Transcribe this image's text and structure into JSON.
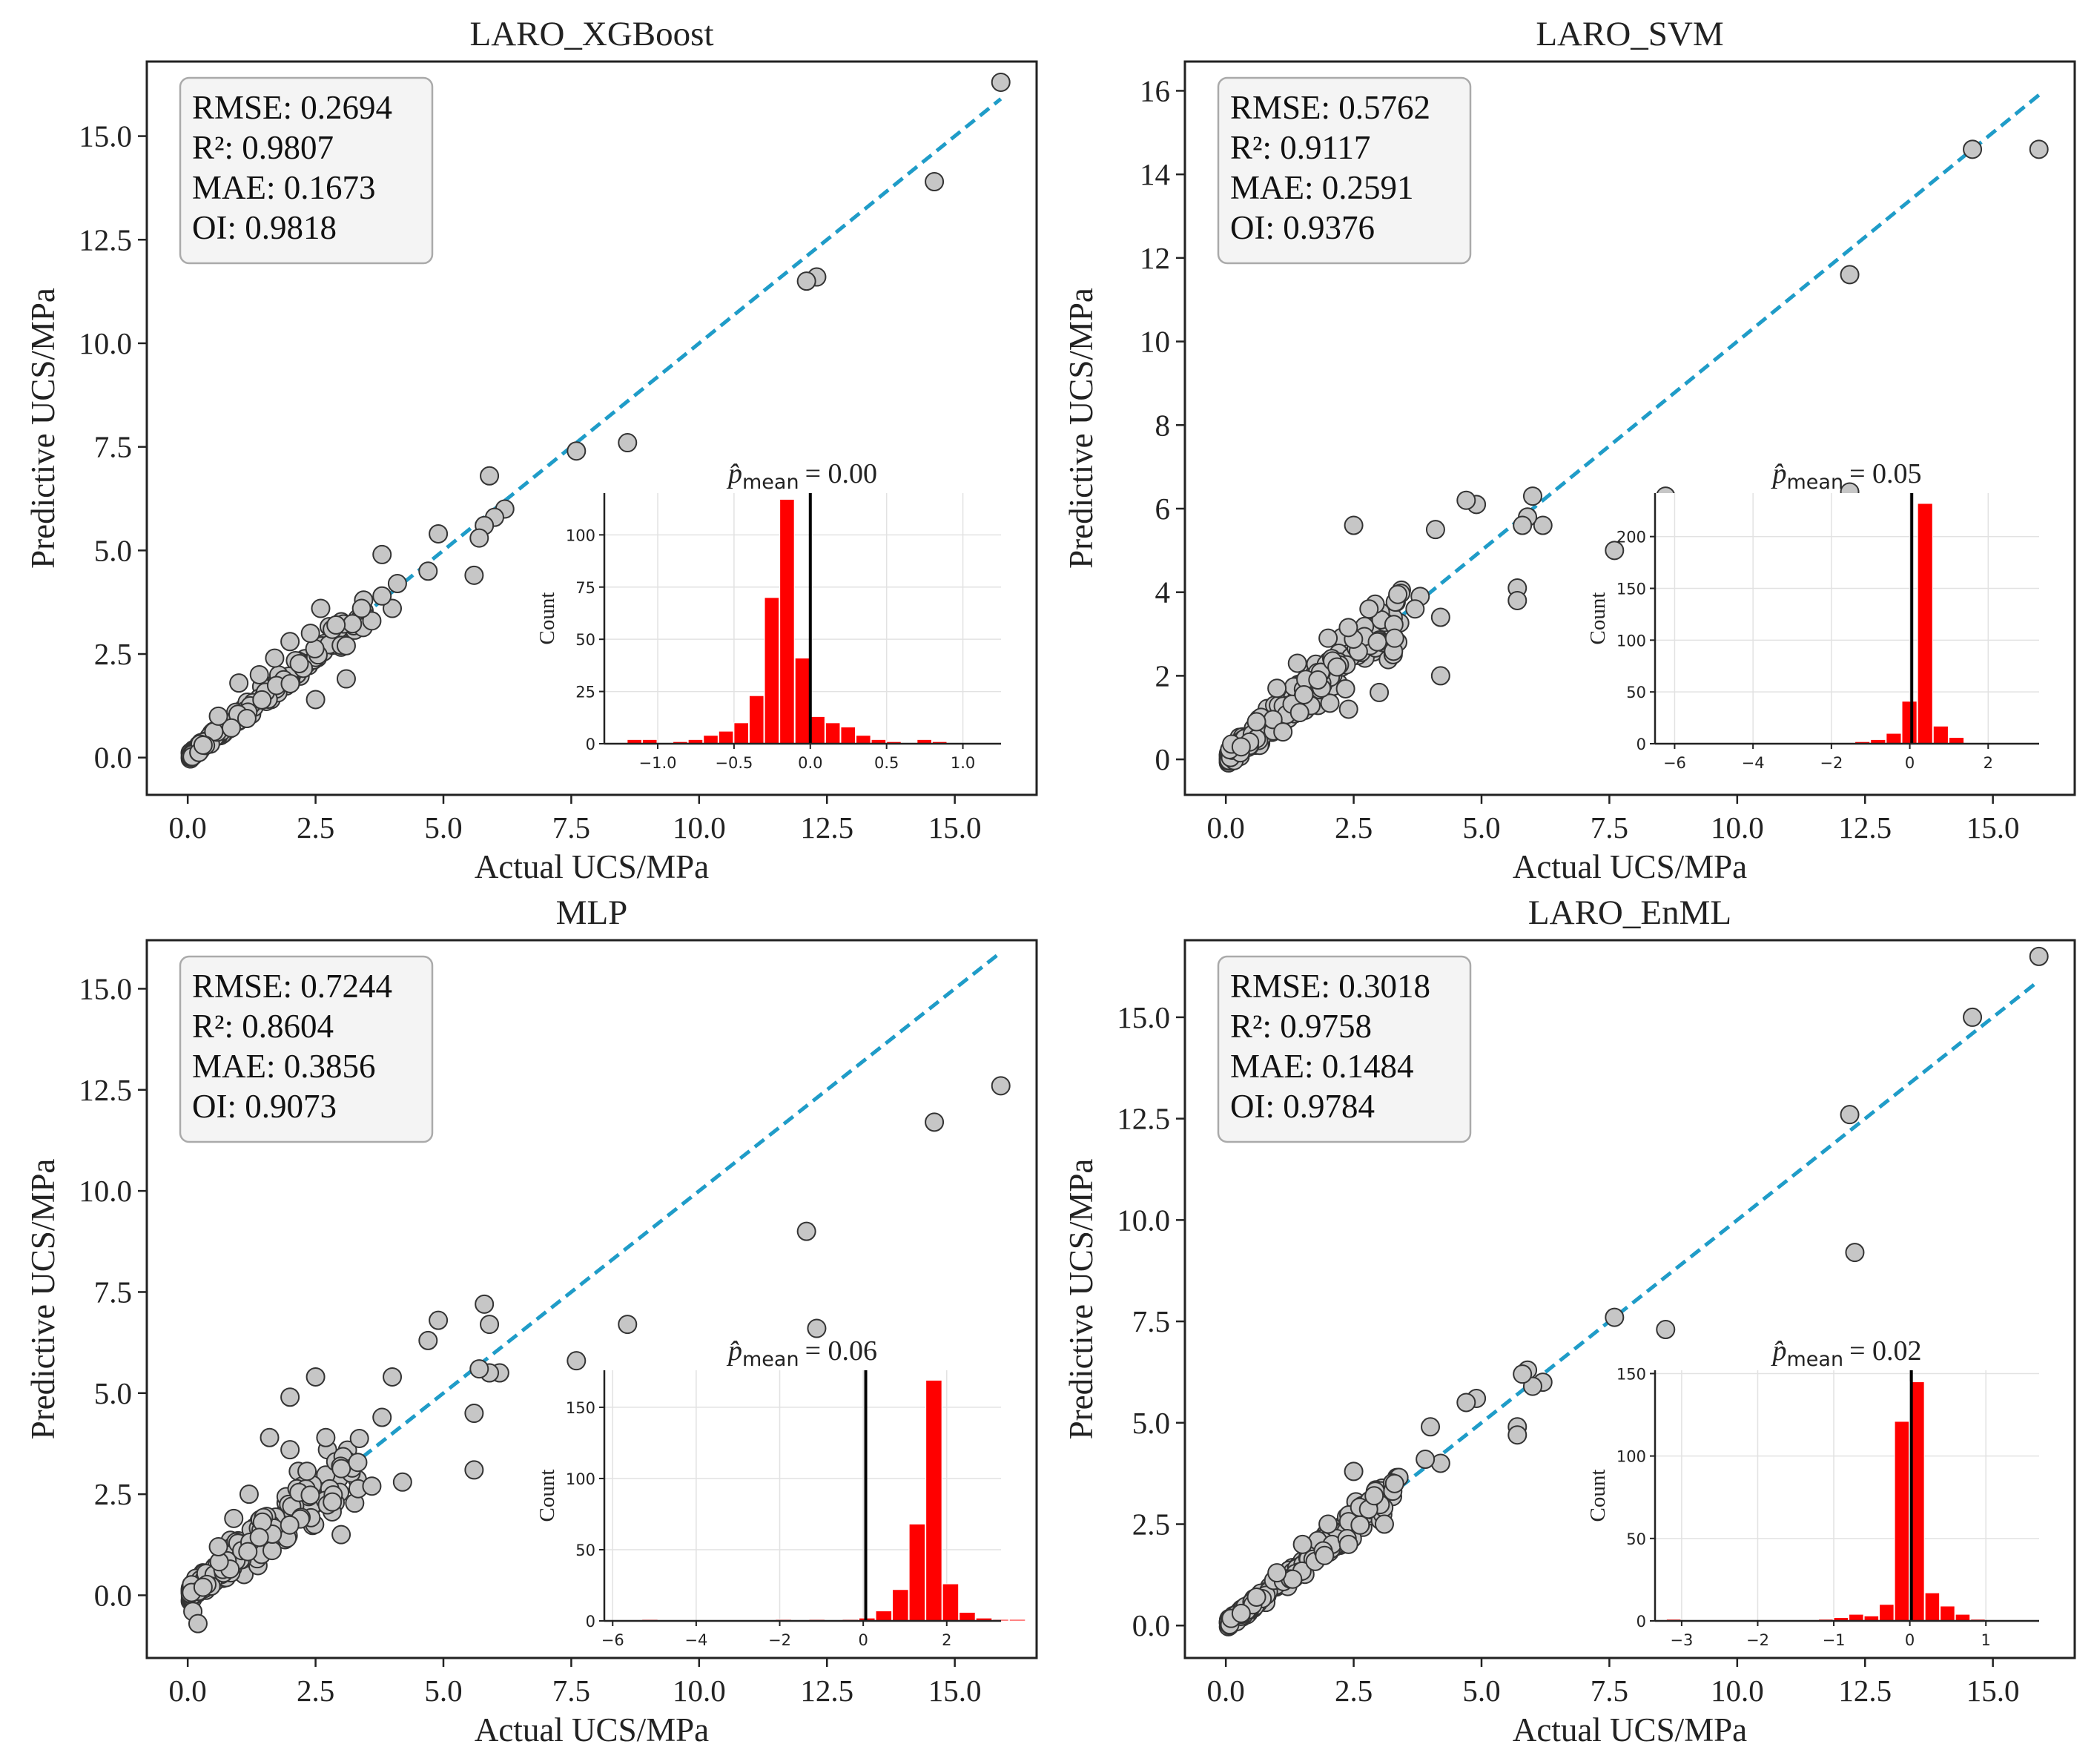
{
  "chart_data": [
    {
      "type": "scatter",
      "title": "LARO_XGBoost",
      "xlabel": "Actual UCS/MPa",
      "ylabel": "Predictive UCS/MPa",
      "xlim": [
        -0.8,
        16.6
      ],
      "ylim": [
        -0.9,
        16.8
      ],
      "xticks": [
        0,
        2.5,
        5,
        7.5,
        10,
        12.5,
        15
      ],
      "xtick_labels": [
        "0.0",
        "2.5",
        "5.0",
        "7.5",
        "10.0",
        "12.5",
        "15.0"
      ],
      "yticks": [
        0,
        2.5,
        5,
        7.5,
        10,
        12.5,
        15
      ],
      "ytick_labels": [
        "0.0",
        "2.5",
        "5.0",
        "7.5",
        "10.0",
        "12.5",
        "15.0"
      ],
      "spread": 0.22,
      "stats": [
        "RMSE: 0.2694",
        "R²: 0.9807",
        "MAE: 0.1673",
        "OI: 0.9818"
      ],
      "points": [
        [
          15.9,
          16.3
        ],
        [
          14.6,
          13.9
        ],
        [
          12.3,
          11.6
        ],
        [
          12.1,
          11.5
        ],
        [
          8.6,
          7.6
        ],
        [
          7.6,
          7.4
        ],
        [
          6.2,
          6.0
        ],
        [
          5.9,
          6.8
        ],
        [
          6.0,
          5.8
        ],
        [
          5.8,
          5.6
        ],
        [
          5.7,
          5.3
        ],
        [
          5.6,
          4.4
        ],
        [
          4.9,
          5.4
        ],
        [
          4.7,
          4.5
        ],
        [
          4.1,
          4.2
        ],
        [
          4.0,
          3.6
        ],
        [
          3.8,
          4.9
        ],
        [
          3.8,
          3.9
        ],
        [
          3.6,
          3.3
        ],
        [
          3.4,
          3.6
        ],
        [
          3.1,
          2.7
        ],
        [
          2.9,
          3.2
        ],
        [
          2.6,
          3.6
        ],
        [
          2.4,
          3.0
        ],
        [
          3.1,
          1.9
        ],
        [
          2.5,
          1.4
        ],
        [
          2.0,
          2.8
        ],
        [
          1.7,
          2.4
        ],
        [
          1.4,
          2.0
        ],
        [
          1.0,
          1.8
        ],
        [
          0.6,
          1.0
        ],
        [
          0.3,
          0.3
        ]
      ],
      "reference_line": [
        [
          0,
          0
        ],
        [
          15.9,
          15.9
        ]
      ],
      "inset": {
        "title_lhs": "p̂",
        "title_sub": "mean",
        "title_value": "= 0.00",
        "ylabel": "Count",
        "xlim": [
          -1.35,
          1.25
        ],
        "ylim": [
          0,
          120
        ],
        "xticks": [
          -1.0,
          -0.5,
          0.0,
          0.5,
          1.0
        ],
        "xtick_labels": [
          "−1.0",
          "−0.5",
          "0.0",
          "0.5",
          "1.0"
        ],
        "yticks": [
          0,
          25,
          50,
          75,
          100
        ],
        "ytick_labels": [
          "0",
          "25",
          "50",
          "75",
          "100"
        ],
        "bin_start": -1.2,
        "bin_width": 0.1,
        "counts": [
          2,
          2,
          0,
          1,
          2,
          4,
          6,
          10,
          23,
          70,
          117,
          41,
          13,
          10,
          8,
          4,
          2,
          1,
          0,
          2,
          1,
          0
        ],
        "mean": 0.0
      }
    },
    {
      "type": "scatter",
      "title": "LARO_SVM",
      "xlabel": "Actual UCS/MPa",
      "ylabel": "Predictive UCS/MPa",
      "xlim": [
        -0.8,
        16.6
      ],
      "ylim": [
        -0.85,
        16.7
      ],
      "xticks": [
        0,
        2.5,
        5,
        7.5,
        10,
        12.5,
        15
      ],
      "xtick_labels": [
        "0.0",
        "2.5",
        "5.0",
        "7.5",
        "10.0",
        "12.5",
        "15.0"
      ],
      "yticks": [
        0,
        2,
        4,
        6,
        8,
        10,
        12,
        14,
        16
      ],
      "ytick_labels": [
        "0",
        "2",
        "4",
        "6",
        "8",
        "10",
        "12",
        "14",
        "16"
      ],
      "spread": 0.45,
      "stats": [
        "RMSE: 0.5762",
        "R²: 0.9117",
        "MAE: 0.2591",
        "OI: 0.9376"
      ],
      "points": [
        [
          15.9,
          14.6
        ],
        [
          14.6,
          14.6
        ],
        [
          12.2,
          11.6
        ],
        [
          8.6,
          6.3
        ],
        [
          7.6,
          5.0
        ],
        [
          12.2,
          6.4
        ],
        [
          6.2,
          5.6
        ],
        [
          6.0,
          6.3
        ],
        [
          5.9,
          5.8
        ],
        [
          5.8,
          5.6
        ],
        [
          5.7,
          4.1
        ],
        [
          5.7,
          3.8
        ],
        [
          4.9,
          6.1
        ],
        [
          4.7,
          6.2
        ],
        [
          4.1,
          5.5
        ],
        [
          4.2,
          3.4
        ],
        [
          4.2,
          2.0
        ],
        [
          3.8,
          3.9
        ],
        [
          3.7,
          3.6
        ],
        [
          3.3,
          2.9
        ],
        [
          3.0,
          1.6
        ],
        [
          2.5,
          5.6
        ],
        [
          2.8,
          3.6
        ],
        [
          2.4,
          1.2
        ],
        [
          2.0,
          2.9
        ],
        [
          1.8,
          1.9
        ],
        [
          1.4,
          2.3
        ],
        [
          1.0,
          1.7
        ],
        [
          0.6,
          0.9
        ],
        [
          0.3,
          0.3
        ]
      ],
      "reference_line": [
        [
          0,
          0
        ],
        [
          15.9,
          15.9
        ]
      ],
      "inset": {
        "title_lhs": "p̂",
        "title_sub": "mean",
        "title_value": "= 0.05",
        "ylabel": "Count",
        "xlim": [
          -6.5,
          3.3
        ],
        "ylim": [
          0,
          242
        ],
        "xticks": [
          -6,
          -4,
          -2,
          0,
          2
        ],
        "xtick_labels": [
          "−6",
          "−4",
          "−2",
          "0",
          "2"
        ],
        "yticks": [
          0,
          50,
          100,
          150,
          200
        ],
        "ytick_labels": [
          "0",
          "50",
          "100",
          "150",
          "200"
        ],
        "bin_start": -6.2,
        "bin_width": 0.4,
        "counts": [
          1,
          0,
          0,
          0,
          0,
          0,
          0,
          0,
          0,
          0,
          0,
          1,
          2,
          4,
          10,
          41,
          232,
          17,
          6,
          1,
          0,
          0
        ],
        "mean": 0.05
      }
    },
    {
      "type": "scatter",
      "title": "MLP",
      "xlabel": "Actual UCS/MPa",
      "ylabel": "Predictive UCS/MPa",
      "xlim": [
        -0.8,
        16.6
      ],
      "ylim": [
        -1.55,
        16.2
      ],
      "xticks": [
        0,
        2.5,
        5,
        7.5,
        10,
        12.5,
        15
      ],
      "xtick_labels": [
        "0.0",
        "2.5",
        "5.0",
        "7.5",
        "10.0",
        "12.5",
        "15.0"
      ],
      "yticks": [
        0,
        2.5,
        5,
        7.5,
        10,
        12.5,
        15
      ],
      "ytick_labels": [
        "0.0",
        "2.5",
        "5.0",
        "7.5",
        "10.0",
        "12.5",
        "15.0"
      ],
      "spread": 0.55,
      "stats": [
        "RMSE: 0.7244",
        "R²: 0.8604",
        "MAE: 0.3856",
        "OI: 0.9073"
      ],
      "points": [
        [
          15.9,
          12.6
        ],
        [
          14.6,
          11.7
        ],
        [
          12.1,
          9.0
        ],
        [
          12.3,
          6.6
        ],
        [
          8.6,
          6.7
        ],
        [
          7.6,
          5.8
        ],
        [
          6.1,
          5.5
        ],
        [
          5.9,
          5.5
        ],
        [
          5.9,
          6.7
        ],
        [
          5.8,
          7.2
        ],
        [
          5.7,
          5.6
        ],
        [
          5.6,
          4.5
        ],
        [
          5.6,
          3.1
        ],
        [
          4.9,
          6.8
        ],
        [
          4.7,
          6.3
        ],
        [
          4.2,
          2.8
        ],
        [
          4.0,
          5.4
        ],
        [
          3.8,
          4.4
        ],
        [
          3.6,
          2.7
        ],
        [
          3.0,
          1.5
        ],
        [
          2.5,
          5.4
        ],
        [
          2.7,
          3.9
        ],
        [
          2.0,
          4.9
        ],
        [
          2.0,
          3.6
        ],
        [
          1.6,
          3.9
        ],
        [
          1.2,
          2.5
        ],
        [
          0.9,
          1.9
        ],
        [
          0.6,
          1.2
        ],
        [
          0.3,
          0.2
        ],
        [
          0.1,
          -0.4
        ],
        [
          0.2,
          -0.7
        ]
      ],
      "reference_line": [
        [
          0,
          0
        ],
        [
          15.9,
          15.9
        ]
      ],
      "inset": {
        "title_lhs": "p̂",
        "title_sub": "mean",
        "title_value": "= 0.06",
        "ylabel": "Count",
        "xlim": [
          -6.2,
          3.3
        ],
        "ylim": [
          0,
          176
        ],
        "xticks": [
          -6,
          -4,
          -2,
          0,
          2
        ],
        "xtick_labels": [
          "−6",
          "−4",
          "−2",
          "0",
          "2"
        ],
        "yticks": [
          0,
          50,
          100,
          150
        ],
        "ytick_labels": [
          "0",
          "50",
          "100",
          "150"
        ],
        "bin_start": -5.3,
        "bin_width": 0.4,
        "counts": [
          1,
          0,
          0,
          0,
          0,
          0,
          0,
          0,
          1,
          0,
          1,
          0,
          1,
          2,
          7,
          22,
          68,
          169,
          26,
          6,
          2,
          1,
          1,
          0
        ],
        "mean": 0.06
      }
    },
    {
      "type": "scatter",
      "title": "LARO_EnML",
      "xlabel": "Actual UCS/MPa",
      "ylabel": "Predictive UCS/MPa",
      "xlim": [
        -0.8,
        16.6
      ],
      "ylim": [
        -0.8,
        16.9
      ],
      "xticks": [
        0,
        2.5,
        5,
        7.5,
        10,
        12.5,
        15
      ],
      "xtick_labels": [
        "0.0",
        "2.5",
        "5.0",
        "7.5",
        "10.0",
        "12.5",
        "15.0"
      ],
      "yticks": [
        0,
        2.5,
        5,
        7.5,
        10,
        12.5,
        15
      ],
      "ytick_labels": [
        "0.0",
        "2.5",
        "5.0",
        "7.5",
        "10.0",
        "12.5",
        "15.0"
      ],
      "spread": 0.25,
      "stats": [
        "RMSE: 0.3018",
        "R²: 0.9758",
        "MAE: 0.1484",
        "OI: 0.9784"
      ],
      "points": [
        [
          15.9,
          16.5
        ],
        [
          14.6,
          15.0
        ],
        [
          12.2,
          12.6
        ],
        [
          12.3,
          9.2
        ],
        [
          8.6,
          7.3
        ],
        [
          7.6,
          7.6
        ],
        [
          6.2,
          6.0
        ],
        [
          5.9,
          6.3
        ],
        [
          6.0,
          5.9
        ],
        [
          5.8,
          6.2
        ],
        [
          5.7,
          4.9
        ],
        [
          5.7,
          4.7
        ],
        [
          4.9,
          5.6
        ],
        [
          4.7,
          5.5
        ],
        [
          4.2,
          4.0
        ],
        [
          4.0,
          4.9
        ],
        [
          3.9,
          4.1
        ],
        [
          3.3,
          3.5
        ],
        [
          2.9,
          3.2
        ],
        [
          2.5,
          3.8
        ],
        [
          3.1,
          2.5
        ],
        [
          2.4,
          2.0
        ],
        [
          2.0,
          2.5
        ],
        [
          1.5,
          2.0
        ],
        [
          1.0,
          1.3
        ],
        [
          0.6,
          0.7
        ],
        [
          0.3,
          0.3
        ]
      ],
      "reference_line": [
        [
          0,
          0
        ],
        [
          15.9,
          15.9
        ]
      ],
      "inset": {
        "title_lhs": "p̂",
        "title_sub": "mean",
        "title_value": "= 0.02",
        "ylabel": "Count",
        "xlim": [
          -3.35,
          1.7
        ],
        "ylim": [
          0,
          152
        ],
        "xticks": [
          -3,
          -2,
          -1,
          0,
          1
        ],
        "xtick_labels": [
          "−3",
          "−2",
          "−1",
          "0",
          "1"
        ],
        "yticks": [
          0,
          50,
          100,
          150
        ],
        "ytick_labels": [
          "0",
          "50",
          "100",
          "150"
        ],
        "bin_start": -3.2,
        "bin_width": 0.2,
        "counts": [
          1,
          0,
          0,
          0,
          0,
          0,
          0,
          0,
          0,
          0,
          1,
          2,
          4,
          3,
          10,
          121,
          145,
          17,
          9,
          4,
          1,
          0
        ],
        "mean": 0.02
      }
    }
  ]
}
